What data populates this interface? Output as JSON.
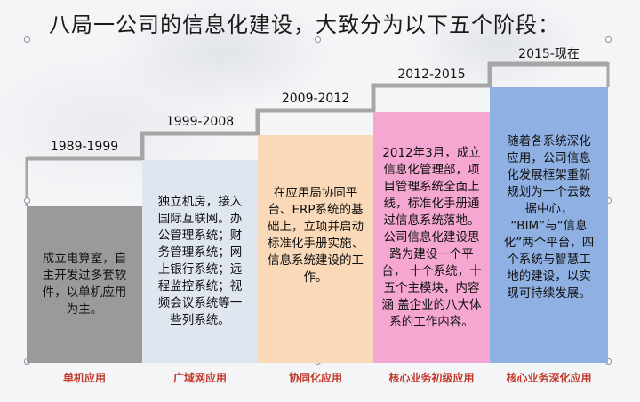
{
  "title": "八局一公司的信息化建设，大致分为以下五个阶段：",
  "stages": [
    {
      "years": "1989-1999",
      "text": "成立电算室，自主开发过多套软件，以单机应用为主。",
      "name": "单机应用",
      "color": "#9a9a9a"
    },
    {
      "years": "1999-2008",
      "text": "独立机房，接入国际互联网。办公管理系统；财务管理系统；网上银行系统；远程监控系统；视频会议系统等一些列系统。",
      "name": "广域网应用",
      "color": "#dfe6f0"
    },
    {
      "years": "2009-2012",
      "text": "在应用局协同平台、ERP系统的基础上，立项并启动标准化手册实施、信息系统建设的工作。",
      "name": "协同化应用",
      "color": "#f9d9b8"
    },
    {
      "years": "2012-2015",
      "text": "2012年3月，成立 信息化管理部，项目管理系统全面上 线，标准化手册通过信息系统落地。公司信息化建设思路为建设一个平台， 十个系统，十五个主模块，内容涵 盖企业的八大体系的工作内容。",
      "name": "核心业务初级应用",
      "color": "#f6a7d1"
    },
    {
      "years": "2015-现在",
      "text": "随着各系统深化应用，公司信息化发展框架重新规划为一个云数据中心， “BIM”与“信息化”两个平台，四个系统与智慧工地的建设，以实现可持续发展。",
      "name": "核心业务深化应用",
      "color": "#8fb0e3"
    }
  ]
}
